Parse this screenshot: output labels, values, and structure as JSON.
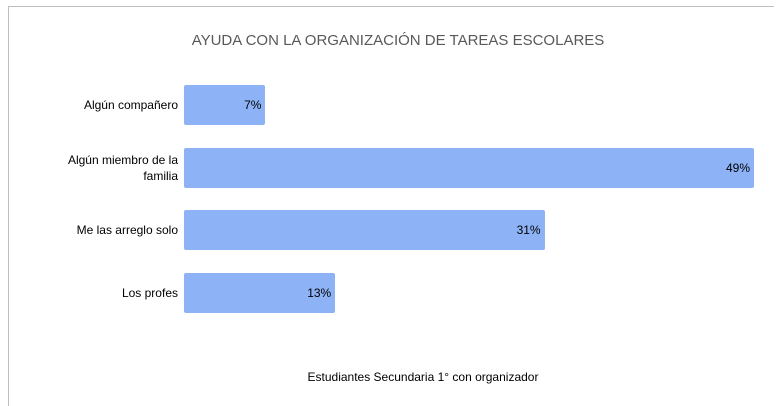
{
  "chart_data": {
    "type": "bar",
    "orientation": "horizontal",
    "title": "AYUDA CON LA ORGANIZACIÓN DE TAREAS ESCOLARES",
    "categories": [
      "Algún compañero",
      "Algún miembro de la familia",
      "Me las arreglo solo",
      "Los profes"
    ],
    "values": [
      7,
      49,
      31,
      13
    ],
    "value_labels": [
      "7%",
      "49%",
      "31%",
      "13%"
    ],
    "color": "#8db3f6",
    "xlabel": "Estudiantes Secundaria 1° con organizador"
  }
}
